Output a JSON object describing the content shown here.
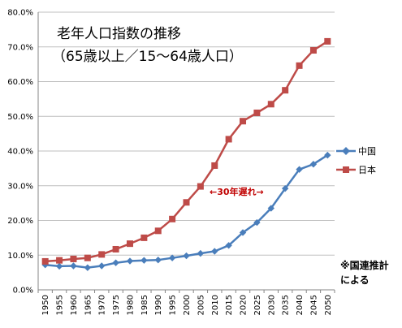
{
  "chart_data": {
    "type": "line",
    "title_line1": "老年人口指数の推移",
    "title_line2": "（65歳以上／15～64歳人口）",
    "xlabel": "",
    "ylabel": "",
    "ylim": [
      0,
      80
    ],
    "y_tick_step": 10,
    "y_tick_format": "percent_1dp",
    "grid": "horizontal",
    "legend_position": "right",
    "categories": [
      "1950",
      "1955",
      "1960",
      "1965",
      "1970",
      "1975",
      "1980",
      "1985",
      "1990",
      "1995",
      "2000",
      "2005",
      "2010",
      "2015",
      "2020",
      "2025",
      "2030",
      "2035",
      "2040",
      "2045",
      "2050"
    ],
    "series": [
      {
        "name": "中国",
        "color": "#4a7ebb",
        "marker": "diamond",
        "values": [
          7.2,
          6.8,
          6.9,
          6.4,
          6.9,
          7.8,
          8.3,
          8.5,
          8.6,
          9.2,
          9.8,
          10.5,
          11.1,
          12.8,
          16.5,
          19.4,
          23.5,
          29.2,
          34.7,
          36.2,
          38.8
        ]
      },
      {
        "name": "日本",
        "color": "#be4b48",
        "marker": "square",
        "values": [
          8.2,
          8.5,
          8.9,
          9.2,
          10.2,
          11.7,
          13.3,
          15.0,
          17.0,
          20.4,
          25.2,
          29.8,
          35.8,
          43.4,
          48.6,
          51.0,
          53.5,
          57.5,
          64.6,
          69.0,
          71.6
        ]
      }
    ],
    "annotation": "←30年遅れ→",
    "note_line1": "※国連推計",
    "note_line2": "による"
  }
}
